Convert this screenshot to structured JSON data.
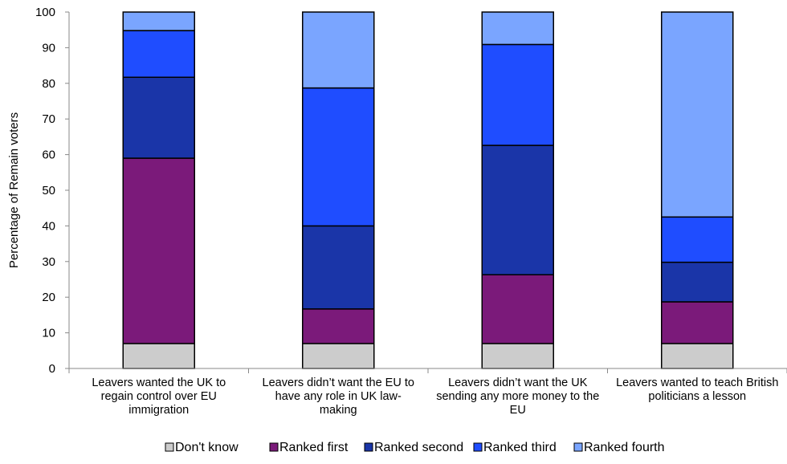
{
  "chart_data": {
    "type": "bar",
    "stacked": true,
    "ylabel": "Percentage of Remain voters",
    "ylim": [
      0,
      100
    ],
    "yticks": [
      0,
      10,
      20,
      30,
      40,
      50,
      60,
      70,
      80,
      90,
      100
    ],
    "categories": [
      [
        "Leavers wanted the UK to",
        "regain control over EU",
        "immigration"
      ],
      [
        "Leavers didn’t want the EU to",
        "have any role in UK law-",
        "making"
      ],
      [
        "Leavers didn’t want the UK",
        "sending any more money to the",
        "EU"
      ],
      [
        "Leavers wanted to teach British",
        "politicians a lesson"
      ]
    ],
    "series": [
      {
        "name": "Don't know",
        "color": "#cccccc",
        "values": [
          7,
          7,
          7,
          7
        ]
      },
      {
        "name": "Ranked first",
        "color": "#7b1a7a",
        "values": [
          52,
          9.7,
          19.3,
          11.7
        ]
      },
      {
        "name": "Ranked second",
        "color": "#1a35a8",
        "values": [
          22.7,
          23.3,
          36.3,
          11.1
        ]
      },
      {
        "name": "Ranked third",
        "color": "#1f4dff",
        "values": [
          13.1,
          38.7,
          28.3,
          12.7
        ]
      },
      {
        "name": "Ranked fourth",
        "color": "#7aa5ff",
        "values": [
          5.2,
          21.3,
          9.1,
          57.5
        ]
      }
    ],
    "legend_position": "bottom",
    "grid": false
  }
}
